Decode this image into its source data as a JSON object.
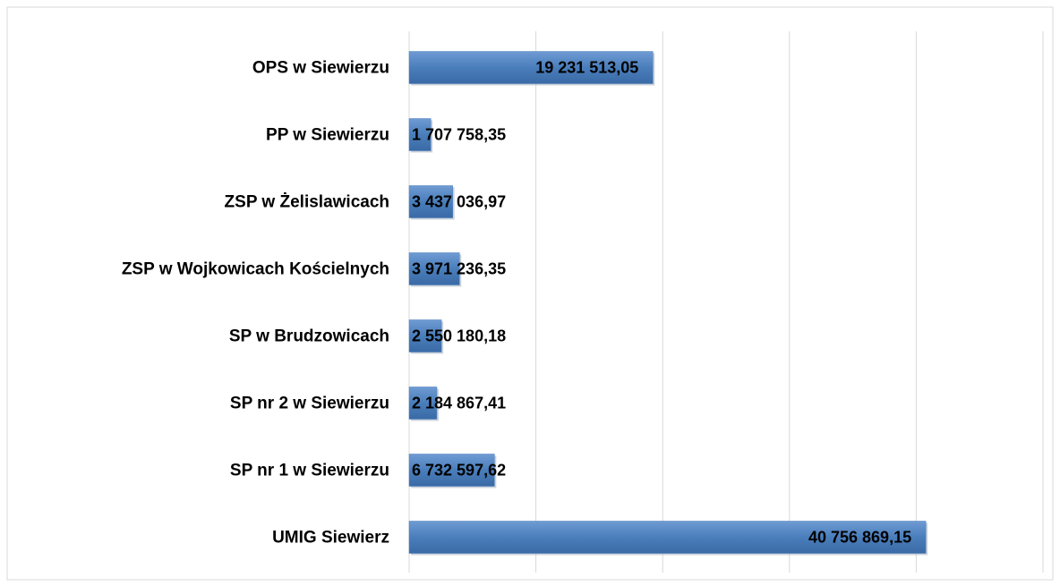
{
  "chart_data": {
    "type": "bar",
    "orientation": "horizontal",
    "categories": [
      "OPS w Siewierzu",
      "PP w Siewierzu",
      "ZSP w Żelislawicach",
      "ZSP w Wojkowicach Kościelnych",
      "SP w Brudzowicach",
      "SP nr 2 w Siewierzu",
      "SP nr 1 w Siewierzu",
      "UMIG Siewierz"
    ],
    "values": [
      19231513.05,
      1707758.35,
      3437036.97,
      3971236.35,
      2550180.18,
      2184867.41,
      6732597.62,
      40756869.15
    ],
    "value_labels": [
      "19 231 513,05",
      "1 707 758,35",
      "3 437 036,97",
      "3 971 236,35",
      "2 550 180,18",
      "2 184 867,41",
      "6 732 597,62",
      "40 756 869,15"
    ],
    "color": "#4a7ebb",
    "xlim": [
      0,
      50000000
    ],
    "xticks": [
      0,
      10000000,
      20000000,
      30000000,
      40000000,
      50000000
    ],
    "grid": true
  }
}
